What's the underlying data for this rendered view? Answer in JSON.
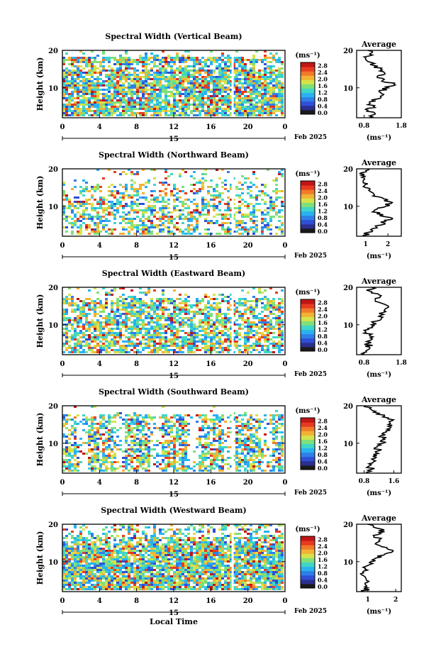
{
  "colors": {
    "scale": [
      "#1a1a1a",
      "#2b2f8f",
      "#2f4fd6",
      "#2f7fe8",
      "#29b2f0",
      "#3fd6c8",
      "#7fe07a",
      "#d6e24a",
      "#f2b233",
      "#f07a2a",
      "#e83a20",
      "#c21515"
    ]
  },
  "common": {
    "date_label": "Feb 2025",
    "day_label": "15",
    "xlabel": "Local Time",
    "unit_label": "(ms⁻¹)",
    "avg_title": "Average",
    "ylabel": "Height (km)"
  },
  "chart_data": [
    {
      "type": "heatmap",
      "title": "Spectral Width (Vertical Beam)",
      "x_ticks": [
        "0",
        "4",
        "8",
        "12",
        "16",
        "20",
        "0"
      ],
      "y_ticks": [
        "10",
        "20"
      ],
      "ylim": [
        2,
        20
      ],
      "colorbar_ticks": [
        "0.0",
        "0.4",
        "0.8",
        "1.2",
        "1.6",
        "2.0",
        "2.4",
        "2.8"
      ],
      "average": {
        "x_ticks": [
          "0.8",
          "1.8"
        ],
        "xlim": [
          0.6,
          1.8
        ],
        "profile": [
          [
            2,
            0.95
          ],
          [
            3,
            1.1
          ],
          [
            4,
            0.9
          ],
          [
            5,
            1.05
          ],
          [
            6,
            0.95
          ],
          [
            7,
            1.15
          ],
          [
            8,
            1.3
          ],
          [
            9,
            1.2
          ],
          [
            10,
            1.45
          ],
          [
            11,
            1.6
          ],
          [
            12,
            1.3
          ],
          [
            13,
            1.15
          ],
          [
            14,
            1.35
          ],
          [
            15,
            1.25
          ],
          [
            16,
            1.05
          ],
          [
            17,
            0.9
          ],
          [
            18,
            0.85
          ],
          [
            19,
            0.95
          ],
          [
            20,
            0.9
          ]
        ]
      }
    },
    {
      "type": "heatmap",
      "title": "Spectral Width (Northward Beam)",
      "x_ticks": [
        "0",
        "4",
        "8",
        "12",
        "16",
        "20",
        "0"
      ],
      "y_ticks": [
        "10",
        "20"
      ],
      "ylim": [
        2,
        20
      ],
      "colorbar_ticks": [
        "0.0",
        "0.4",
        "0.8",
        "1.2",
        "1.6",
        "2.0",
        "2.4",
        "2.8"
      ],
      "average": {
        "x_ticks": [
          "1",
          "2"
        ],
        "xlim": [
          0.6,
          2.6
        ],
        "profile": [
          [
            2,
            0.9
          ],
          [
            3,
            1.1
          ],
          [
            4,
            1.3
          ],
          [
            5,
            1.7
          ],
          [
            6,
            1.9
          ],
          [
            7,
            2.1
          ],
          [
            8,
            1.5
          ],
          [
            9,
            1.4
          ],
          [
            10,
            1.9
          ],
          [
            11,
            2.2
          ],
          [
            12,
            1.8
          ],
          [
            13,
            1.4
          ],
          [
            14,
            1.2
          ],
          [
            15,
            1.0
          ],
          [
            16,
            1.1
          ],
          [
            17,
            0.9
          ],
          [
            18,
            1.0
          ],
          [
            19,
            0.85
          ],
          [
            20,
            1.1
          ]
        ]
      }
    },
    {
      "type": "heatmap",
      "title": "Spectral Width (Eastward Beam)",
      "x_ticks": [
        "0",
        "4",
        "8",
        "12",
        "16",
        "20",
        "0"
      ],
      "y_ticks": [
        "10",
        "20"
      ],
      "ylim": [
        2,
        20
      ],
      "colorbar_ticks": [
        "0.0",
        "0.4",
        "0.8",
        "1.2",
        "1.6",
        "2.0",
        "2.4",
        "2.8"
      ],
      "average": {
        "x_ticks": [
          "0.8",
          "1.8"
        ],
        "xlim": [
          0.6,
          1.8
        ],
        "profile": [
          [
            2,
            0.8
          ],
          [
            3,
            0.85
          ],
          [
            4,
            0.95
          ],
          [
            5,
            0.9
          ],
          [
            6,
            1.0
          ],
          [
            7,
            0.95
          ],
          [
            8,
            0.85
          ],
          [
            9,
            0.9
          ],
          [
            10,
            1.0
          ],
          [
            11,
            1.15
          ],
          [
            12,
            1.3
          ],
          [
            13,
            1.2
          ],
          [
            14,
            1.35
          ],
          [
            15,
            1.45
          ],
          [
            16,
            1.2
          ],
          [
            17,
            1.1
          ],
          [
            18,
            1.2
          ],
          [
            19,
            0.95
          ],
          [
            20,
            1.0
          ]
        ]
      }
    },
    {
      "type": "heatmap",
      "title": "Spectral Width (Southward Beam)",
      "x_ticks": [
        "0",
        "4",
        "8",
        "12",
        "16",
        "20",
        "0"
      ],
      "y_ticks": [
        "10",
        "20"
      ],
      "ylim": [
        2,
        20
      ],
      "colorbar_ticks": [
        "0.0",
        "0.4",
        "0.8",
        "1.2",
        "1.6",
        "2.0",
        "2.4",
        "2.8"
      ],
      "average": {
        "x_ticks": [
          "0.8",
          "1.6"
        ],
        "xlim": [
          0.6,
          1.8
        ],
        "profile": [
          [
            2,
            0.9
          ],
          [
            3,
            1.0
          ],
          [
            4,
            0.95
          ],
          [
            5,
            1.05
          ],
          [
            6,
            1.1
          ],
          [
            7,
            1.05
          ],
          [
            8,
            1.2
          ],
          [
            9,
            1.15
          ],
          [
            10,
            1.3
          ],
          [
            11,
            1.35
          ],
          [
            12,
            1.25
          ],
          [
            13,
            1.4
          ],
          [
            14,
            1.5
          ],
          [
            15,
            1.45
          ],
          [
            16,
            1.55
          ],
          [
            17,
            1.3
          ],
          [
            18,
            1.2
          ],
          [
            19,
            1.0
          ],
          [
            20,
            0.85
          ]
        ]
      }
    },
    {
      "type": "heatmap",
      "title": "Spectral Width (Westward Beam)",
      "x_ticks": [
        "0",
        "4",
        "8",
        "12",
        "16",
        "20",
        "0"
      ],
      "y_ticks": [
        "10",
        "20"
      ],
      "ylim": [
        2,
        20
      ],
      "colorbar_ticks": [
        "0.0",
        "0.4",
        "0.8",
        "1.2",
        "1.6",
        "2.0",
        "2.4",
        "2.8"
      ],
      "average": {
        "x_ticks": [
          "1",
          "2"
        ],
        "xlim": [
          0.6,
          2.2
        ],
        "profile": [
          [
            2,
            0.85
          ],
          [
            3,
            1.0
          ],
          [
            4,
            0.9
          ],
          [
            5,
            0.95
          ],
          [
            6,
            0.9
          ],
          [
            7,
            0.85
          ],
          [
            8,
            0.9
          ],
          [
            9,
            1.0
          ],
          [
            10,
            1.1
          ],
          [
            11,
            1.3
          ],
          [
            12,
            1.6
          ],
          [
            13,
            1.9
          ],
          [
            14,
            1.5
          ],
          [
            15,
            1.3
          ],
          [
            16,
            1.45
          ],
          [
            17,
            1.2
          ],
          [
            18,
            1.6
          ],
          [
            19,
            1.3
          ],
          [
            20,
            1.0
          ]
        ]
      }
    }
  ]
}
